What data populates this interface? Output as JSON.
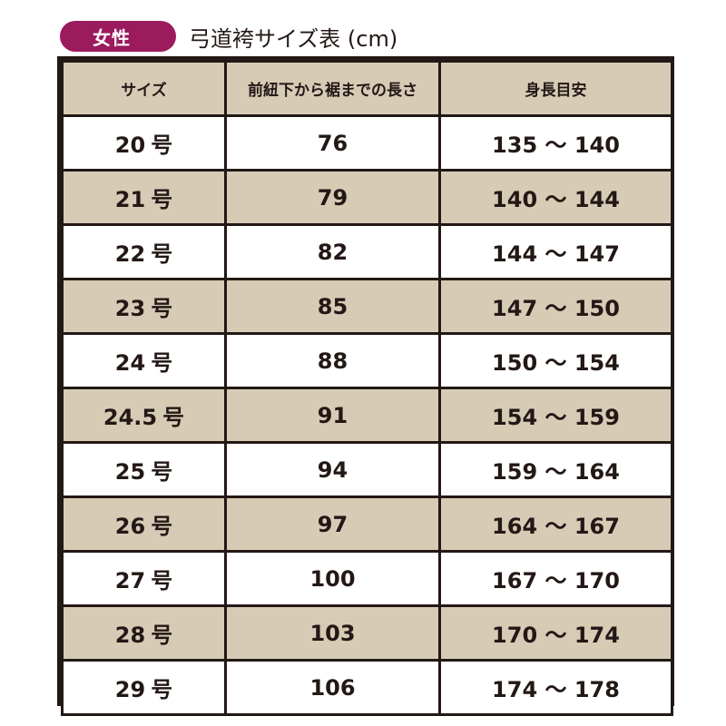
{
  "header": {
    "badge_label": "女性",
    "title": "弓道袴サイズ表 (cm)"
  },
  "table": {
    "columns": [
      "サイズ",
      "前紐下から裾までの長さ",
      "身長目安"
    ],
    "rows": [
      {
        "size": "20",
        "unit": "号",
        "length": "76",
        "height": "135 ～ 140"
      },
      {
        "size": "21",
        "unit": "号",
        "length": "79",
        "height": "140 ～ 144"
      },
      {
        "size": "22",
        "unit": "号",
        "length": "82",
        "height": "144 ～ 147"
      },
      {
        "size": "23",
        "unit": "号",
        "length": "85",
        "height": "147 ～ 150"
      },
      {
        "size": "24",
        "unit": "号",
        "length": "88",
        "height": "150 ～ 154"
      },
      {
        "size": "24.5",
        "unit": "号",
        "length": "91",
        "height": "154 ～ 159"
      },
      {
        "size": "25",
        "unit": "号",
        "length": "94",
        "height": "159 ～ 164"
      },
      {
        "size": "26",
        "unit": "号",
        "length": "97",
        "height": "164 ～ 167"
      },
      {
        "size": "27",
        "unit": "号",
        "length": "100",
        "height": "167 ～ 170"
      },
      {
        "size": "28",
        "unit": "号",
        "length": "103",
        "height": "170 ～ 174"
      },
      {
        "size": "29",
        "unit": "号",
        "length": "106",
        "height": "174 ～ 178"
      }
    ]
  },
  "colors": {
    "badge_background": "#9c1a5e",
    "row_shade": "#d6cbb5",
    "border": "#231815"
  }
}
